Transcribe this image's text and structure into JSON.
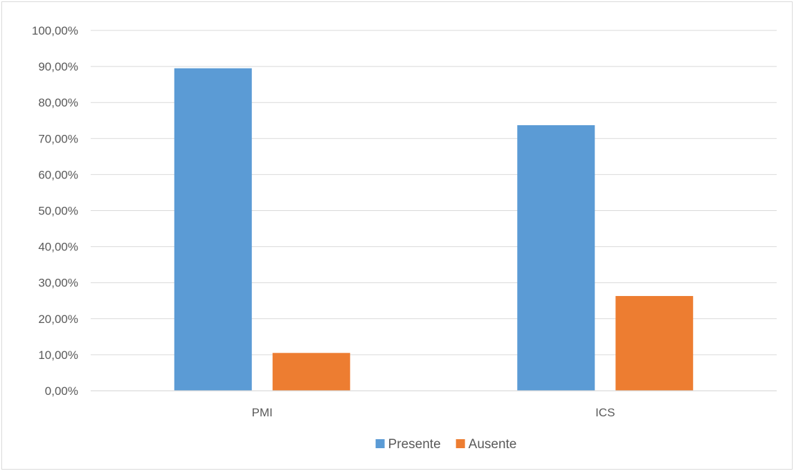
{
  "chart_data": {
    "type": "bar",
    "title": "",
    "xlabel": "",
    "ylabel": "",
    "categories": [
      "PMI",
      "ICS"
    ],
    "series": [
      {
        "name": "Presente",
        "color": "#5B9BD5",
        "values": [
          89.5,
          73.7
        ]
      },
      {
        "name": "Ausente",
        "color": "#ED7D31",
        "values": [
          10.5,
          26.3
        ]
      }
    ],
    "ylim": [
      0,
      100
    ],
    "yticks": [
      0,
      10,
      20,
      30,
      40,
      50,
      60,
      70,
      80,
      90,
      100
    ],
    "ytick_labels": [
      "0,00%",
      "10,00%",
      "20,00%",
      "30,00%",
      "40,00%",
      "50,00%",
      "60,00%",
      "70,00%",
      "80,00%",
      "90,00%",
      "100,00%"
    ],
    "grid": true,
    "legend": "bottom"
  }
}
